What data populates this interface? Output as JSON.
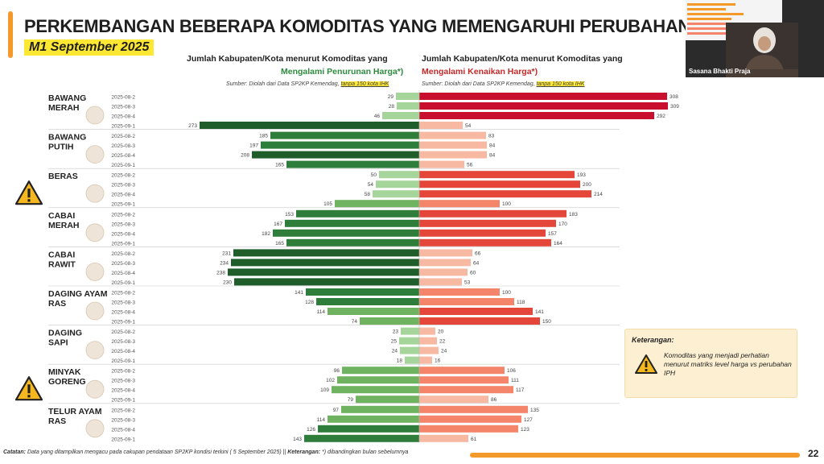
{
  "title": "PERKEMBANGAN BEBERAPA KOMODITAS YANG MEMENGARUHI PERUBAHAN IPH",
  "subtitle": "M1 September 2025",
  "left_header": {
    "line1": "Jumlah Kabupaten/Kota menurut Komoditas yang",
    "line2": "Mengalami Penurunan Harga",
    "suffix": "*)"
  },
  "right_header": {
    "line1": "Jumlah Kabupaten/Kota menurut Komoditas yang",
    "line2": "Mengalami Kenaikan Harga",
    "suffix": "*)"
  },
  "source_left": {
    "prefix": "Sumber: Diolah dari Data SP2KP Kemendag, ",
    "highlight": "tanpa 150 kota IHK"
  },
  "source_right": {
    "prefix": "Sumber: Diolah dari Data SP2KP Kemendag, ",
    "highlight": "tanpa 150 kota IHK"
  },
  "video": {
    "label": "Sasana Bhakti Praja"
  },
  "legend": {
    "title": "Keterangan:",
    "text": "Komoditas yang menjadi perhatian menurut matriks level harga vs perubahan IPH"
  },
  "footer": {
    "catatan_label": "Catatan:",
    "catatan_text": " Data yang ditampilkan mengacu pada cakupan pendataan SP2KP kondisi terkini ( 5 September 2025) || ",
    "keterangan_label": "Keterangan:",
    "keterangan_text": " *) dibandingkan bulan sebelumnya"
  },
  "page_number": "22",
  "colors": {
    "down_light": "#a6d59b",
    "down_mid": "#6fb25f",
    "down_dark": "#2e7d3b",
    "down_darkest": "#1f5e2b",
    "up_light": "#f8b9a3",
    "up_mid": "#f4856a",
    "up_dark": "#e4473a",
    "up_darkest": "#c8102e",
    "accent": "#f39a2b",
    "highlight": "#ffe833"
  },
  "chart_data": {
    "type": "bar",
    "orientation": "horizontal-diverging",
    "periods": [
      "2025-08-2",
      "2025-08-3",
      "2025-08-4",
      "2025-09-1"
    ],
    "commodities": [
      {
        "name": "BAWANG MERAH",
        "icon": "shallot-icon",
        "warning": false,
        "down": [
          29,
          28,
          46,
          273
        ],
        "up": [
          308,
          309,
          292,
          54
        ]
      },
      {
        "name": "BAWANG PUTIH",
        "icon": "garlic-icon",
        "warning": false,
        "down": [
          185,
          197,
          208,
          165
        ],
        "up": [
          83,
          84,
          84,
          56
        ]
      },
      {
        "name": "BERAS",
        "icon": "rice-icon",
        "warning": true,
        "down": [
          50,
          54,
          58,
          105
        ],
        "up": [
          193,
          200,
          214,
          100
        ]
      },
      {
        "name": "CABAI MERAH",
        "icon": "red-chili-icon",
        "warning": false,
        "down": [
          153,
          167,
          182,
          165
        ],
        "up": [
          183,
          170,
          157,
          164
        ]
      },
      {
        "name": "CABAI RAWIT",
        "icon": "bird-chili-icon",
        "warning": false,
        "down": [
          231,
          234,
          238,
          230
        ],
        "up": [
          66,
          64,
          60,
          53
        ]
      },
      {
        "name": "DAGING AYAM RAS",
        "icon": "chicken-meat-icon",
        "warning": false,
        "down": [
          141,
          128,
          114,
          74
        ],
        "up": [
          100,
          118,
          141,
          150
        ]
      },
      {
        "name": "DAGING SAPI",
        "icon": "beef-icon",
        "warning": false,
        "down": [
          23,
          25,
          24,
          18
        ],
        "up": [
          20,
          22,
          24,
          16
        ]
      },
      {
        "name": "MINYAK GORENG",
        "icon": "cooking-oil-icon",
        "warning": true,
        "down": [
          96,
          102,
          109,
          79
        ],
        "up": [
          106,
          111,
          117,
          86
        ]
      },
      {
        "name": "TELUR AYAM RAS",
        "icon": "egg-icon",
        "warning": false,
        "down": [
          97,
          114,
          126,
          143
        ],
        "up": [
          135,
          127,
          123,
          61
        ]
      }
    ]
  }
}
